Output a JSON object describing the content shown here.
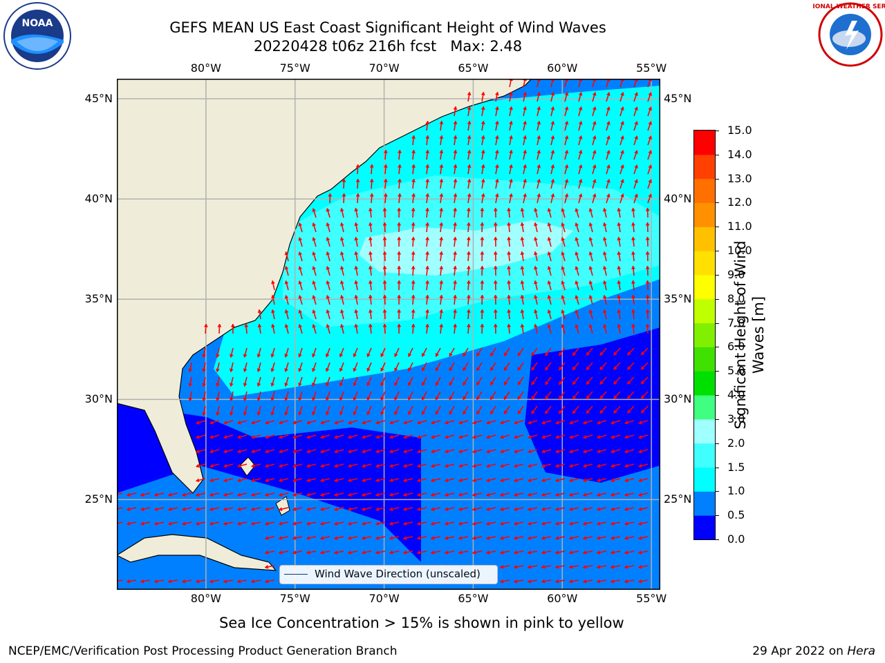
{
  "title": {
    "line1": "GEFS MEAN US East Coast Significant Height of Wind Waves",
    "line2": "20220428 t06z 216h fcst   Max: 2.48"
  },
  "logos": {
    "left": {
      "name": "NOAA",
      "ring_text": "NATIONAL OCEANIC AND ATMOSPHERIC ADMINISTRATION",
      "ring_text_bottom": "U.S. DEPARTMENT OF COMMERCE"
    },
    "right": {
      "name": "NATIONAL WEATHER SERVICE"
    }
  },
  "map": {
    "lon_ticks": [
      "80°W",
      "75°W",
      "70°W",
      "65°W",
      "60°W",
      "55°W"
    ],
    "lat_ticks": [
      "45°N",
      "40°N",
      "35°N",
      "30°N",
      "25°N"
    ],
    "lon_range": [
      -85,
      -54.5
    ],
    "lat_range": [
      20.5,
      46
    ],
    "grid": true,
    "legend": {
      "label": "Wind Wave Direction (unscaled)",
      "placement": "bottom-center"
    },
    "arrow_color": "#ff0000",
    "land_color": "#efedd9"
  },
  "colorbar": {
    "label": "Significant Height of Wind Waves [m]",
    "ticks": [
      "15.0",
      "14.0",
      "13.0",
      "12.0",
      "11.0",
      "10.0",
      "9.0",
      "8.0",
      "7.0",
      "6.0",
      "5.0",
      "4.0",
      "3.0",
      "2.0",
      "1.5",
      "1.0",
      "0.5",
      "0.0"
    ],
    "levels": [
      0.0,
      0.5,
      1.0,
      1.5,
      2.0,
      3.0,
      4.0,
      5.0,
      6.0,
      7.0,
      8.0,
      9.0,
      10.0,
      11.0,
      12.0,
      13.0,
      14.0,
      15.0
    ],
    "colors": [
      "#0000ff",
      "#0080ff",
      "#00ffff",
      "#40ffff",
      "#a0ffff",
      "#40ff80",
      "#00e000",
      "#40e000",
      "#80f000",
      "#c0ff00",
      "#ffff00",
      "#ffe000",
      "#ffc000",
      "#ff9000",
      "#ff7000",
      "#ff4000",
      "#ff0000"
    ]
  },
  "note": "Sea Ice Concentration > 15% is shown in pink to yellow",
  "footer": {
    "left": "NCEP/EMC/Verification Post Processing Product Generation Branch",
    "right_date": "29 Apr 2022 on ",
    "right_machine": "Hera"
  }
}
